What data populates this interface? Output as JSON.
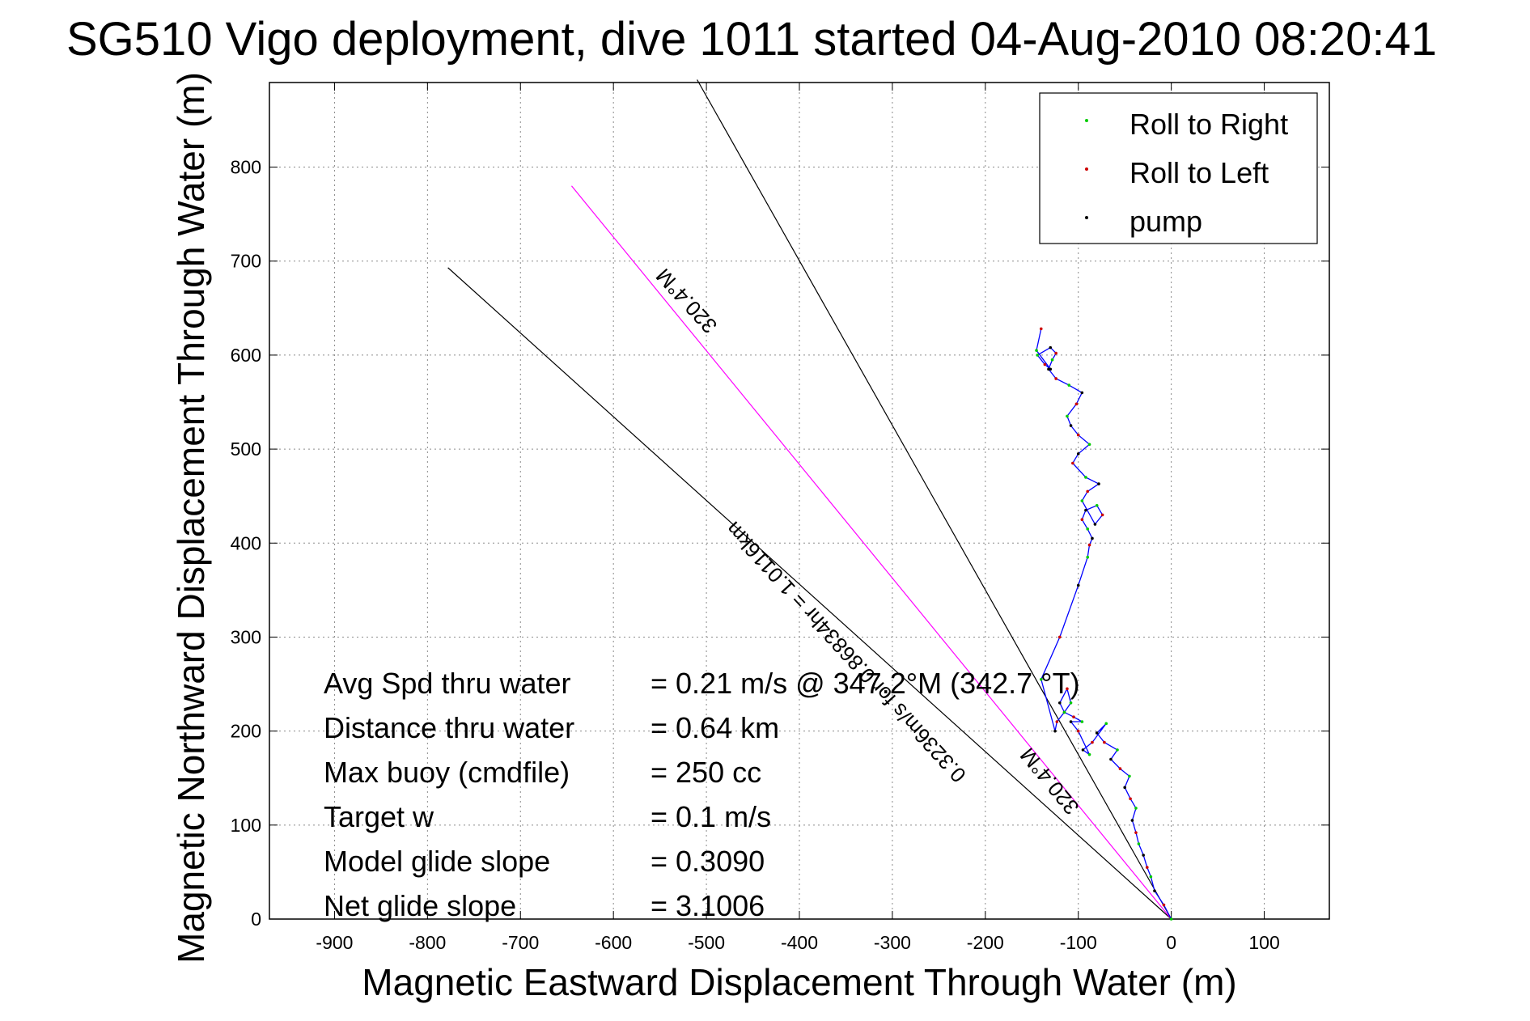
{
  "chart_data": {
    "type": "line",
    "title": "SG510 Vigo deployment, dive 1011 started 04-Aug-2010 08:20:41",
    "xlabel": "Magnetic Eastward Displacement Through Water (m)",
    "ylabel": "Magnetic Northward Displacement Through Water (m)",
    "xlim": [
      -970,
      170
    ],
    "ylim": [
      0,
      890
    ],
    "xticks": [
      -900,
      -800,
      -700,
      -600,
      -500,
      -400,
      -300,
      -200,
      -100,
      0,
      100
    ],
    "yticks": [
      0,
      100,
      200,
      300,
      400,
      500,
      600,
      700,
      800
    ],
    "grid": true,
    "legend_position": "top-right",
    "legend": [
      {
        "label": "Roll to Right",
        "color": "#00cc00"
      },
      {
        "label": "Roll to Left",
        "color": "#cc0000"
      },
      {
        "label": "pump",
        "color": "#000000"
      }
    ],
    "track_color": "#0000ff",
    "track": {
      "x": [
        0,
        -8,
        -18,
        -22,
        -26,
        -30,
        -35,
        -38,
        -42,
        -38,
        -44,
        -50,
        -45,
        -55,
        -65,
        -58,
        -72,
        -80,
        -70,
        -85,
        -95,
        -88,
        -100,
        -108,
        -96,
        -105,
        -115,
        -108,
        -112,
        -120,
        -115,
        -123,
        -125,
        -140,
        -120,
        -100,
        -90,
        -88,
        -85,
        -90,
        -96,
        -92,
        -80,
        -74,
        -82,
        -96,
        -90,
        -78,
        -92,
        -106,
        -100,
        -88,
        -100,
        -108,
        -112,
        -102,
        -96,
        -110,
        -124,
        -132,
        -128,
        -124,
        -130,
        -144,
        -136,
        -130,
        -145,
        -140
      ],
      "y": [
        0,
        15,
        30,
        45,
        55,
        68,
        80,
        92,
        105,
        118,
        128,
        140,
        152,
        160,
        170,
        180,
        188,
        198,
        208,
        188,
        180,
        175,
        200,
        210,
        210,
        215,
        220,
        230,
        245,
        230,
        220,
        210,
        200,
        255,
        300,
        355,
        385,
        398,
        405,
        415,
        425,
        435,
        440,
        430,
        420,
        445,
        455,
        463,
        470,
        485,
        495,
        505,
        515,
        525,
        535,
        548,
        560,
        568,
        575,
        585,
        595,
        602,
        608,
        600,
        590,
        585,
        605,
        628
      ]
    },
    "reference_lines": [
      {
        "label": "320.4°M",
        "color": "#000000",
        "x": [
          0,
          -778
        ],
        "y": [
          0,
          693
        ]
      },
      {
        "label": "0.3236m/s for 0.86834hr = 1.0116km",
        "color": "#ff00ff",
        "x": [
          0,
          -645
        ],
        "y": [
          0,
          780
        ]
      },
      {
        "label": "320.4°M",
        "color": "#000000",
        "x": [
          0,
          -510
        ],
        "y": [
          0,
          893
        ]
      }
    ],
    "line_labels": [
      "320.4°M",
      "0.3236m/s for 0.86834hr = 1.0116km",
      "320.4°M"
    ],
    "annotations": [
      {
        "name": "Avg Spd thru water",
        "value": "=  0.21 m/s @ 347.2°M (342.7 °T)"
      },
      {
        "name": "Distance thru water",
        "value": "=  0.64 km"
      },
      {
        "name": "Max buoy (cmdfile)",
        "value": "= 250 cc"
      },
      {
        "name": "Target w",
        "value": "= 0.1 m/s"
      },
      {
        "name": "Model glide slope",
        "value": "= 0.3090"
      },
      {
        "name": "Net glide slope",
        "value": "= 3.1006"
      }
    ]
  }
}
